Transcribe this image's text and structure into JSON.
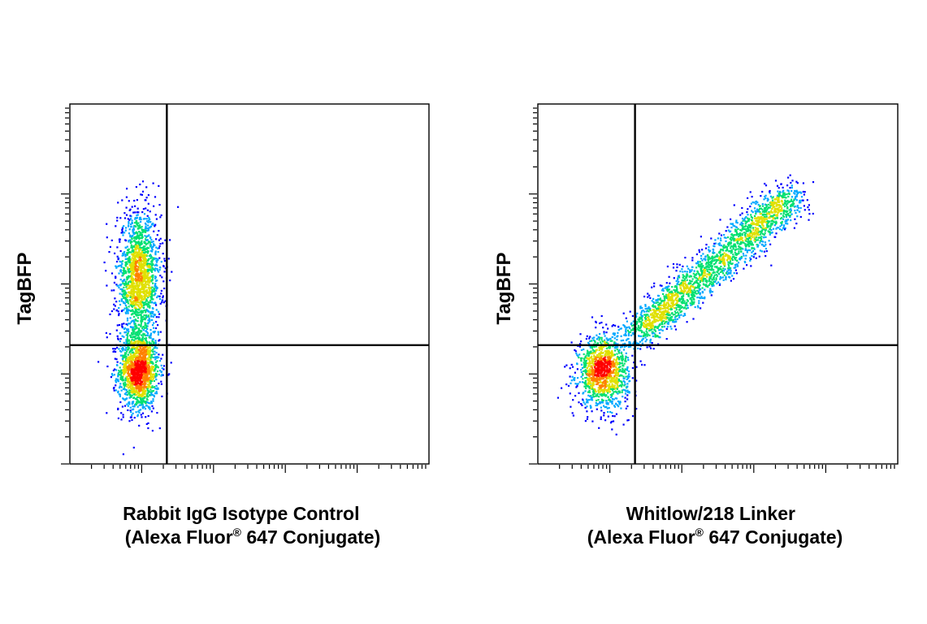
{
  "chart_data": [
    {
      "type": "scatter",
      "subtype": "flow-cytometry-density-plot",
      "ylabel": "TagBFP",
      "xlabel_lines": [
        "Rabbit IgG Isotype Control",
        "(Alexa Fluor",
        "®",
        " 647 Conjugate)"
      ],
      "x_scale": "log",
      "y_scale": "log",
      "x_decades": 5,
      "y_decades": 4,
      "gate_x_fraction": 0.27,
      "gate_y_fraction": 0.33,
      "color_scale": [
        "#0000ff",
        "#00a8ff",
        "#00e070",
        "#e0e000",
        "#ff8000",
        "#ff0000"
      ],
      "populations": [
        {
          "label": "TagBFP-negative",
          "x_center": 0.19,
          "y_center": 0.26,
          "x_spread": 0.028,
          "y_spread": 0.055,
          "count": 1500
        },
        {
          "label": "TagBFP-positive",
          "x_center": 0.19,
          "y_center": 0.52,
          "x_spread": 0.03,
          "y_spread": 0.09,
          "count": 1700
        }
      ]
    },
    {
      "type": "scatter",
      "subtype": "flow-cytometry-density-plot",
      "ylabel": "TagBFP",
      "xlabel_lines": [
        "Whitlow/218 Linker",
        "(Alexa Fluor",
        "®",
        " 647 Conjugate)"
      ],
      "x_scale": "log",
      "y_scale": "log",
      "x_decades": 5,
      "y_decades": 4,
      "gate_x_fraction": 0.27,
      "gate_y_fraction": 0.33,
      "color_scale": [
        "#0000ff",
        "#00a8ff",
        "#00e070",
        "#e0e000",
        "#ff8000",
        "#ff0000"
      ],
      "populations": [
        {
          "label": "TagBFP-negative / Alexa 647-negative",
          "x_center": 0.18,
          "y_center": 0.26,
          "x_spread": 0.035,
          "y_spread": 0.05,
          "count": 1300
        },
        {
          "label": "TagBFP-positive / Alexa 647-positive diagonal",
          "x_start": 0.27,
          "y_start": 0.36,
          "x_end": 0.71,
          "y_end": 0.75,
          "spread": 0.028,
          "count": 2200
        }
      ]
    }
  ]
}
